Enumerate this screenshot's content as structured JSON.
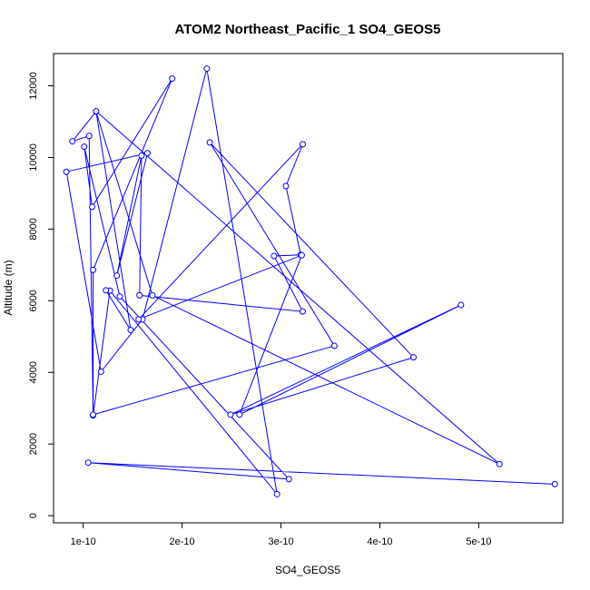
{
  "chart_data": {
    "type": "line",
    "title": "ATOM2 Northeast_Pacific_1 SO4_GEOS5",
    "xlabel": "SO4_GEOS5",
    "ylabel": "Altitude (m)",
    "xlim": [
      7e-11,
      5.85e-10
    ],
    "ylim": [
      -200,
      12900
    ],
    "x_ticks": [
      1e-10,
      2e-10,
      3e-10,
      4e-10,
      5e-10
    ],
    "x_tick_labels": [
      "1e-10",
      "2e-10",
      "3e-10",
      "4e-10",
      "5e-10"
    ],
    "y_ticks": [
      0,
      2000,
      4000,
      6000,
      8000,
      10000,
      12000
    ],
    "y_tick_labels": [
      "0",
      "2000",
      "4000",
      "6000",
      "8000",
      "10000",
      "12000"
    ],
    "line_color": "#0000ff",
    "marker": "open-circle",
    "grid": false,
    "series": [
      {
        "x": [
          5.77e-10,
          1.05e-10,
          3.08e-10,
          1.37e-10,
          1.01e-10,
          1.09e-10,
          1.9e-10,
          1.1e-10,
          1.1e-10,
          1.27e-10,
          2.96e-10,
          2.25e-10,
          1.6e-10,
          1.18e-10,
          8.3e-11,
          1.65e-10,
          1.34e-10,
          1.59e-10,
          1.57e-10,
          3.22e-10,
          2.93e-10,
          3.2e-10,
          3.05e-10,
          3.22e-10,
          1.56e-10,
          3.21e-10,
          2.58e-10,
          4.82e-10,
          2.49e-10,
          4.34e-10,
          2.28e-10,
          3.54e-10,
          1.1e-10,
          1.06e-10,
          8.9e-11,
          1.13e-10,
          1.7e-10,
          5.21e-10,
          1.13e-10,
          1.48e-10,
          1.23e-10
        ],
        "y": [
          880,
          1480,
          1020,
          6120,
          10300,
          8620,
          12200,
          6860,
          2800,
          6280,
          600,
          12480,
          5480,
          4020,
          9600,
          10120,
          6700,
          10050,
          6150,
          5700,
          7250,
          7280,
          9200,
          10370,
          5480,
          7270,
          2820,
          5880,
          2820,
          4420,
          10420,
          4740,
          2820,
          10600,
          10450,
          11280,
          6150,
          1440,
          11290,
          5180,
          6290
        ]
      }
    ]
  }
}
